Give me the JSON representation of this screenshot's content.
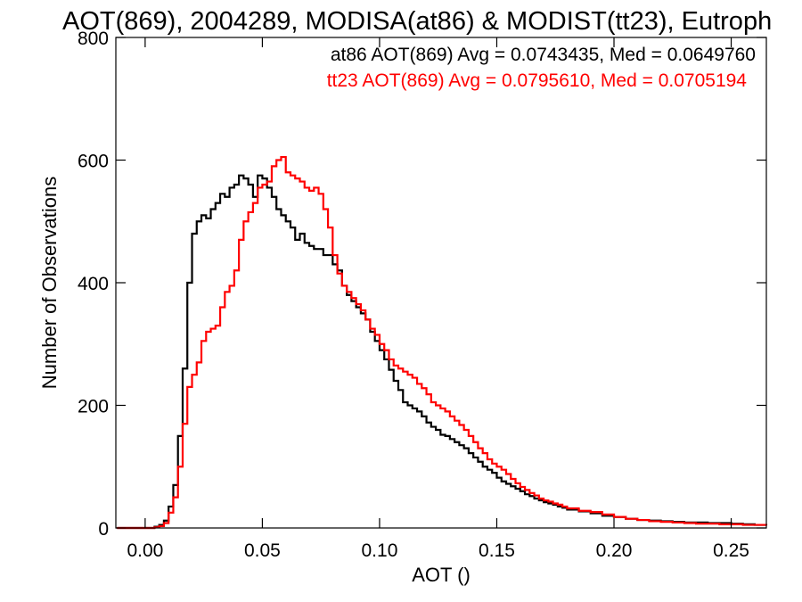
{
  "chart_data": {
    "type": "line",
    "title": "AOT(869), 2004289, MODISA(at86) & MODIST(tt23), Eutroph",
    "xlabel": "AOT ()",
    "ylabel": "Number of Observations",
    "xlim": [
      -0.0125,
      0.265
    ],
    "ylim": [
      0,
      800
    ],
    "x_ticks": [
      0.0,
      0.05,
      0.1,
      0.15,
      0.2,
      0.25
    ],
    "x_tick_labels": [
      "0.00",
      "0.05",
      "0.10",
      "0.15",
      "0.20",
      "0.25"
    ],
    "y_ticks": [
      0,
      200,
      400,
      600,
      800
    ],
    "y_tick_labels": [
      "0",
      "200",
      "400",
      "600",
      "800"
    ],
    "grid": false,
    "legend_position": "top-right",
    "annotations": [
      {
        "text": "at86 AOT(869) Avg = 0.0743435, Med = 0.0649760",
        "color": "#000000"
      },
      {
        "text": "tt23 AOT(869) Avg = 0.0795610, Med = 0.0705194",
        "color": "#ff0000"
      }
    ],
    "series": [
      {
        "color": "#000000",
        "x": [
          -0.012,
          0.0,
          0.004,
          0.006,
          0.008,
          0.01,
          0.012,
          0.014,
          0.016,
          0.018,
          0.02,
          0.022,
          0.024,
          0.026,
          0.028,
          0.03,
          0.032,
          0.034,
          0.036,
          0.038,
          0.04,
          0.042,
          0.044,
          0.046,
          0.048,
          0.05,
          0.052,
          0.054,
          0.056,
          0.058,
          0.06,
          0.062,
          0.064,
          0.066,
          0.068,
          0.07,
          0.072,
          0.074,
          0.076,
          0.078,
          0.08,
          0.082,
          0.084,
          0.086,
          0.088,
          0.09,
          0.092,
          0.094,
          0.096,
          0.098,
          0.1,
          0.102,
          0.104,
          0.106,
          0.108,
          0.11,
          0.112,
          0.114,
          0.116,
          0.118,
          0.12,
          0.122,
          0.124,
          0.126,
          0.128,
          0.13,
          0.132,
          0.134,
          0.136,
          0.138,
          0.14,
          0.142,
          0.144,
          0.146,
          0.148,
          0.15,
          0.152,
          0.154,
          0.156,
          0.158,
          0.16,
          0.162,
          0.164,
          0.166,
          0.168,
          0.17,
          0.172,
          0.174,
          0.176,
          0.178,
          0.18,
          0.185,
          0.19,
          0.195,
          0.2,
          0.205,
          0.21,
          0.215,
          0.22,
          0.225,
          0.23,
          0.235,
          0.24,
          0.245,
          0.25,
          0.255,
          0.26,
          0.265
        ],
        "values": [
          0,
          0,
          2,
          5,
          12,
          35,
          70,
          150,
          260,
          400,
          480,
          500,
          510,
          505,
          520,
          530,
          545,
          540,
          555,
          560,
          575,
          570,
          560,
          540,
          575,
          570,
          555,
          540,
          520,
          510,
          500,
          490,
          470,
          480,
          465,
          460,
          455,
          455,
          445,
          445,
          430,
          420,
          395,
          380,
          370,
          360,
          350,
          340,
          320,
          305,
          290,
          275,
          258,
          240,
          225,
          205,
          200,
          195,
          190,
          182,
          172,
          165,
          160,
          152,
          150,
          145,
          140,
          135,
          130,
          122,
          115,
          108,
          100,
          95,
          90,
          82,
          76,
          72,
          68,
          64,
          60,
          55,
          52,
          48,
          45,
          42,
          40,
          38,
          35,
          33,
          30,
          27,
          24,
          20,
          18,
          15,
          13,
          12,
          11,
          10,
          9,
          9,
          8,
          8,
          7,
          6,
          5,
          5
        ]
      },
      {
        "color": "#ff0000",
        "x": [
          -0.012,
          0.0,
          0.004,
          0.006,
          0.008,
          0.01,
          0.012,
          0.014,
          0.016,
          0.018,
          0.02,
          0.022,
          0.024,
          0.026,
          0.028,
          0.03,
          0.032,
          0.034,
          0.036,
          0.038,
          0.04,
          0.042,
          0.044,
          0.046,
          0.048,
          0.05,
          0.052,
          0.054,
          0.056,
          0.058,
          0.06,
          0.062,
          0.064,
          0.066,
          0.068,
          0.07,
          0.072,
          0.074,
          0.076,
          0.078,
          0.08,
          0.082,
          0.084,
          0.086,
          0.088,
          0.09,
          0.092,
          0.094,
          0.096,
          0.098,
          0.1,
          0.102,
          0.104,
          0.106,
          0.108,
          0.11,
          0.112,
          0.114,
          0.116,
          0.118,
          0.12,
          0.122,
          0.124,
          0.126,
          0.128,
          0.13,
          0.132,
          0.134,
          0.136,
          0.138,
          0.14,
          0.142,
          0.144,
          0.146,
          0.148,
          0.15,
          0.152,
          0.154,
          0.156,
          0.158,
          0.16,
          0.162,
          0.164,
          0.166,
          0.168,
          0.17,
          0.172,
          0.174,
          0.176,
          0.178,
          0.18,
          0.185,
          0.19,
          0.195,
          0.2,
          0.205,
          0.21,
          0.215,
          0.22,
          0.225,
          0.23,
          0.235,
          0.24,
          0.245,
          0.25,
          0.255,
          0.26,
          0.265
        ],
        "values": [
          0,
          0,
          1,
          3,
          8,
          25,
          50,
          100,
          170,
          230,
          250,
          270,
          305,
          320,
          325,
          330,
          360,
          385,
          395,
          420,
          470,
          500,
          515,
          530,
          555,
          560,
          565,
          590,
          600,
          605,
          580,
          575,
          570,
          565,
          555,
          550,
          555,
          545,
          520,
          490,
          445,
          415,
          395,
          385,
          375,
          365,
          355,
          340,
          325,
          315,
          300,
          290,
          275,
          265,
          260,
          255,
          250,
          245,
          235,
          228,
          218,
          205,
          200,
          195,
          190,
          182,
          175,
          168,
          160,
          150,
          140,
          130,
          122,
          112,
          105,
          100,
          95,
          88,
          80,
          73,
          67,
          62,
          57,
          53,
          48,
          45,
          43,
          40,
          38,
          35,
          32,
          28,
          26,
          22,
          18,
          15,
          13,
          11,
          10,
          9,
          8,
          7,
          7,
          6,
          6,
          5,
          5,
          4
        ]
      }
    ]
  }
}
